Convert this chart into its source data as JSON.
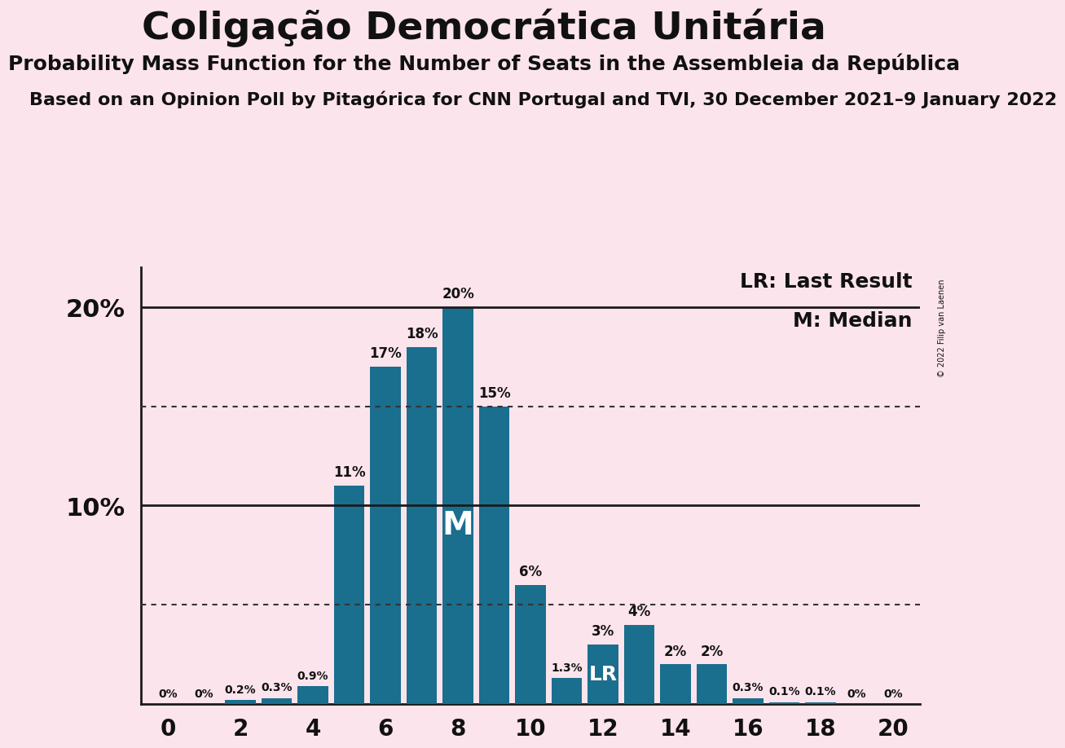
{
  "title": "Coligação Democrática Unitária",
  "subtitle1": "Probability Mass Function for the Number of Seats in the Assembleia da República",
  "subtitle2": "Based on an Opinion Poll by Pitagórica for CNN Portugal and TVI, 30 December 2021–9 January 2022",
  "copyright": "© 2022 Filip van Laenen",
  "seats": [
    0,
    1,
    2,
    3,
    4,
    5,
    6,
    7,
    8,
    9,
    10,
    11,
    12,
    13,
    14,
    15,
    16,
    17,
    18,
    19,
    20
  ],
  "probabilities": [
    0.0,
    0.0,
    0.2,
    0.3,
    0.9,
    11.0,
    17.0,
    18.0,
    20.0,
    15.0,
    6.0,
    1.3,
    3.0,
    4.0,
    2.0,
    2.0,
    0.3,
    0.1,
    0.1,
    0.0,
    0.0
  ],
  "bar_color": "#1a6e8e",
  "background_color": "#fce4ec",
  "median_seat": 8,
  "last_result_seat": 12,
  "ylim": [
    0,
    22
  ],
  "dotted_lines": [
    5.0,
    15.0
  ],
  "solid_lines": [
    10.0,
    20.0
  ],
  "bar_labels": [
    "0%",
    "0%",
    "0.2%",
    "0.3%",
    "0.9%",
    "11%",
    "17%",
    "18%",
    "20%",
    "15%",
    "6%",
    "1.3%",
    "3%",
    "4%",
    "2%",
    "2%",
    "0.3%",
    "0.1%",
    "0.1%",
    "0%",
    "0%"
  ],
  "title_fontsize": 34,
  "subtitle1_fontsize": 18,
  "subtitle2_fontsize": 16,
  "ytick_fontsize": 22,
  "xtick_fontsize": 20,
  "bar_label_fontsize_small": 10,
  "bar_label_fontsize_large": 12,
  "legend_fontsize": 18,
  "M_fontsize": 28,
  "LR_fontsize": 18
}
